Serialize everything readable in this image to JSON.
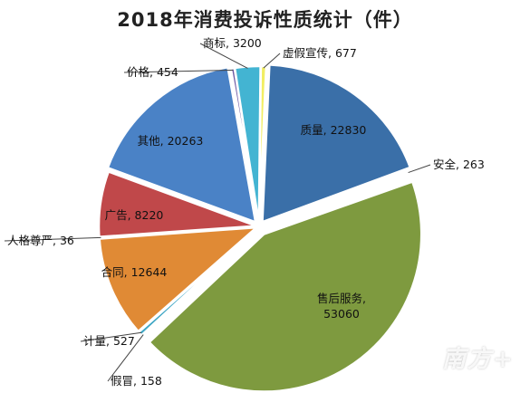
{
  "chart_data": {
    "type": "pie",
    "title": "2018年消费投诉性质统计（件）",
    "slices": [
      {
        "name": "质量",
        "value": 22830,
        "label_text": "质量, 22830",
        "color": "#3A6FA8"
      },
      {
        "name": "安全",
        "value": 263,
        "label_text": "安全, 263",
        "color": "#B04A4A"
      },
      {
        "name": "售后服务",
        "value": 53060,
        "label_text": "售后服务,\n53060",
        "color": "#7E9A3F"
      },
      {
        "name": "假冒",
        "value": 158,
        "label_text": "假冒, 158",
        "color": "#6A52A0"
      },
      {
        "name": "计量",
        "value": 527,
        "label_text": "计量, 527",
        "color": "#3EA6C4"
      },
      {
        "name": "合同",
        "value": 12644,
        "label_text": "合同, 12644",
        "color": "#E08A35"
      },
      {
        "name": "人格尊严",
        "value": 36,
        "label_text": "人格尊严, 36",
        "color": "#4A77B5"
      },
      {
        "name": "广告",
        "value": 8220,
        "label_text": "广告, 8220",
        "color": "#C0484A"
      },
      {
        "name": "其他",
        "value": 20263,
        "label_text": "其他, 20263",
        "color": "#4A82C6"
      },
      {
        "name": "价格",
        "value": 454,
        "label_text": "价格, 454",
        "color": "#6E5AA5"
      },
      {
        "name": "商标",
        "value": 3200,
        "label_text": "商标, 3200",
        "color": "#43B4D2"
      },
      {
        "name": "虚假宣传",
        "value": 677,
        "label_text": "虚假宣传, 677",
        "color": "#F2EE63"
      }
    ]
  },
  "watermark": "南方+"
}
